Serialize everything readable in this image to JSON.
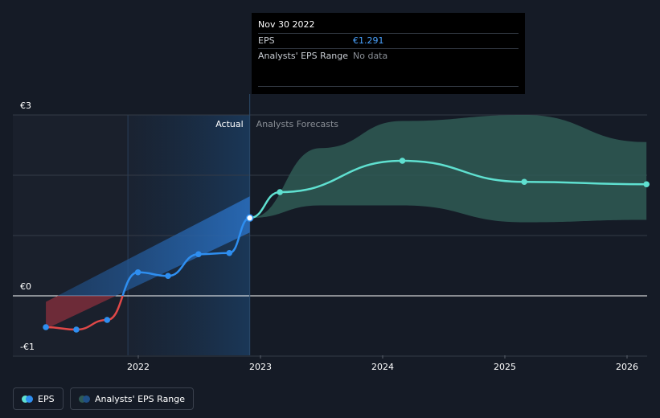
{
  "tooltip": {
    "date": "Nov 30 2022",
    "rows": [
      {
        "label": "EPS",
        "value": "€1.291"
      },
      {
        "label": "Analysts' EPS Range",
        "value": "No data"
      }
    ]
  },
  "legend": {
    "eps_label": "EPS",
    "range_label": "Analysts' EPS Range"
  },
  "colors": {
    "background": "#151b26",
    "eps_positive": "#2e8ef0",
    "eps_negative": "#e04848",
    "forecast": "#5fe0d0",
    "range_fill": "#2f5a55"
  },
  "chart_data": {
    "type": "line",
    "regions": {
      "actual_label": "Actual",
      "forecast_label": "Analysts Forecasts",
      "split_date": "2022-11-30"
    },
    "ylim": [
      -1,
      3
    ],
    "yticks": [
      {
        "value": 3,
        "label": "€3"
      },
      {
        "value": 0,
        "label": "€0"
      },
      {
        "value": -1,
        "label": "-€1"
      }
    ],
    "xticks": [
      "2022",
      "2023",
      "2024",
      "2025",
      "2026"
    ],
    "series": [
      {
        "name": "EPS",
        "points": [
          {
            "x": "2021-03-31",
            "y": -0.52
          },
          {
            "x": "2021-06-30",
            "y": -0.56
          },
          {
            "x": "2021-09-30",
            "y": -0.4
          },
          {
            "x": "2021-12-31",
            "y": 0.39
          },
          {
            "x": "2022-03-31",
            "y": 0.33
          },
          {
            "x": "2022-06-30",
            "y": 0.69
          },
          {
            "x": "2022-09-30",
            "y": 0.71
          },
          {
            "x": "2022-11-30",
            "y": 1.291
          }
        ]
      },
      {
        "name": "EPS forecast",
        "points": [
          {
            "x": "2022-11-30",
            "y": 1.291
          },
          {
            "x": "2023-02-28",
            "y": 1.72
          },
          {
            "x": "2024-02-29",
            "y": 2.24
          },
          {
            "x": "2025-02-28",
            "y": 1.89
          },
          {
            "x": "2026-02-28",
            "y": 1.85
          }
        ]
      }
    ],
    "range": [
      {
        "x": "2022-11-30",
        "low": 1.291,
        "high": 1.291
      },
      {
        "x": "2023-06-30",
        "low": 1.5,
        "high": 2.45
      },
      {
        "x": "2024-02-29",
        "low": 1.5,
        "high": 2.9
      },
      {
        "x": "2025-02-28",
        "low": 1.22,
        "high": 3.0
      },
      {
        "x": "2026-02-28",
        "low": 1.26,
        "high": 2.55
      }
    ],
    "trend_band": {
      "from": "2021-03-31",
      "to": "2022-11-30",
      "low_start": -0.55,
      "high_start": -0.1,
      "low_end": 1.05,
      "high_end": 1.65
    }
  }
}
